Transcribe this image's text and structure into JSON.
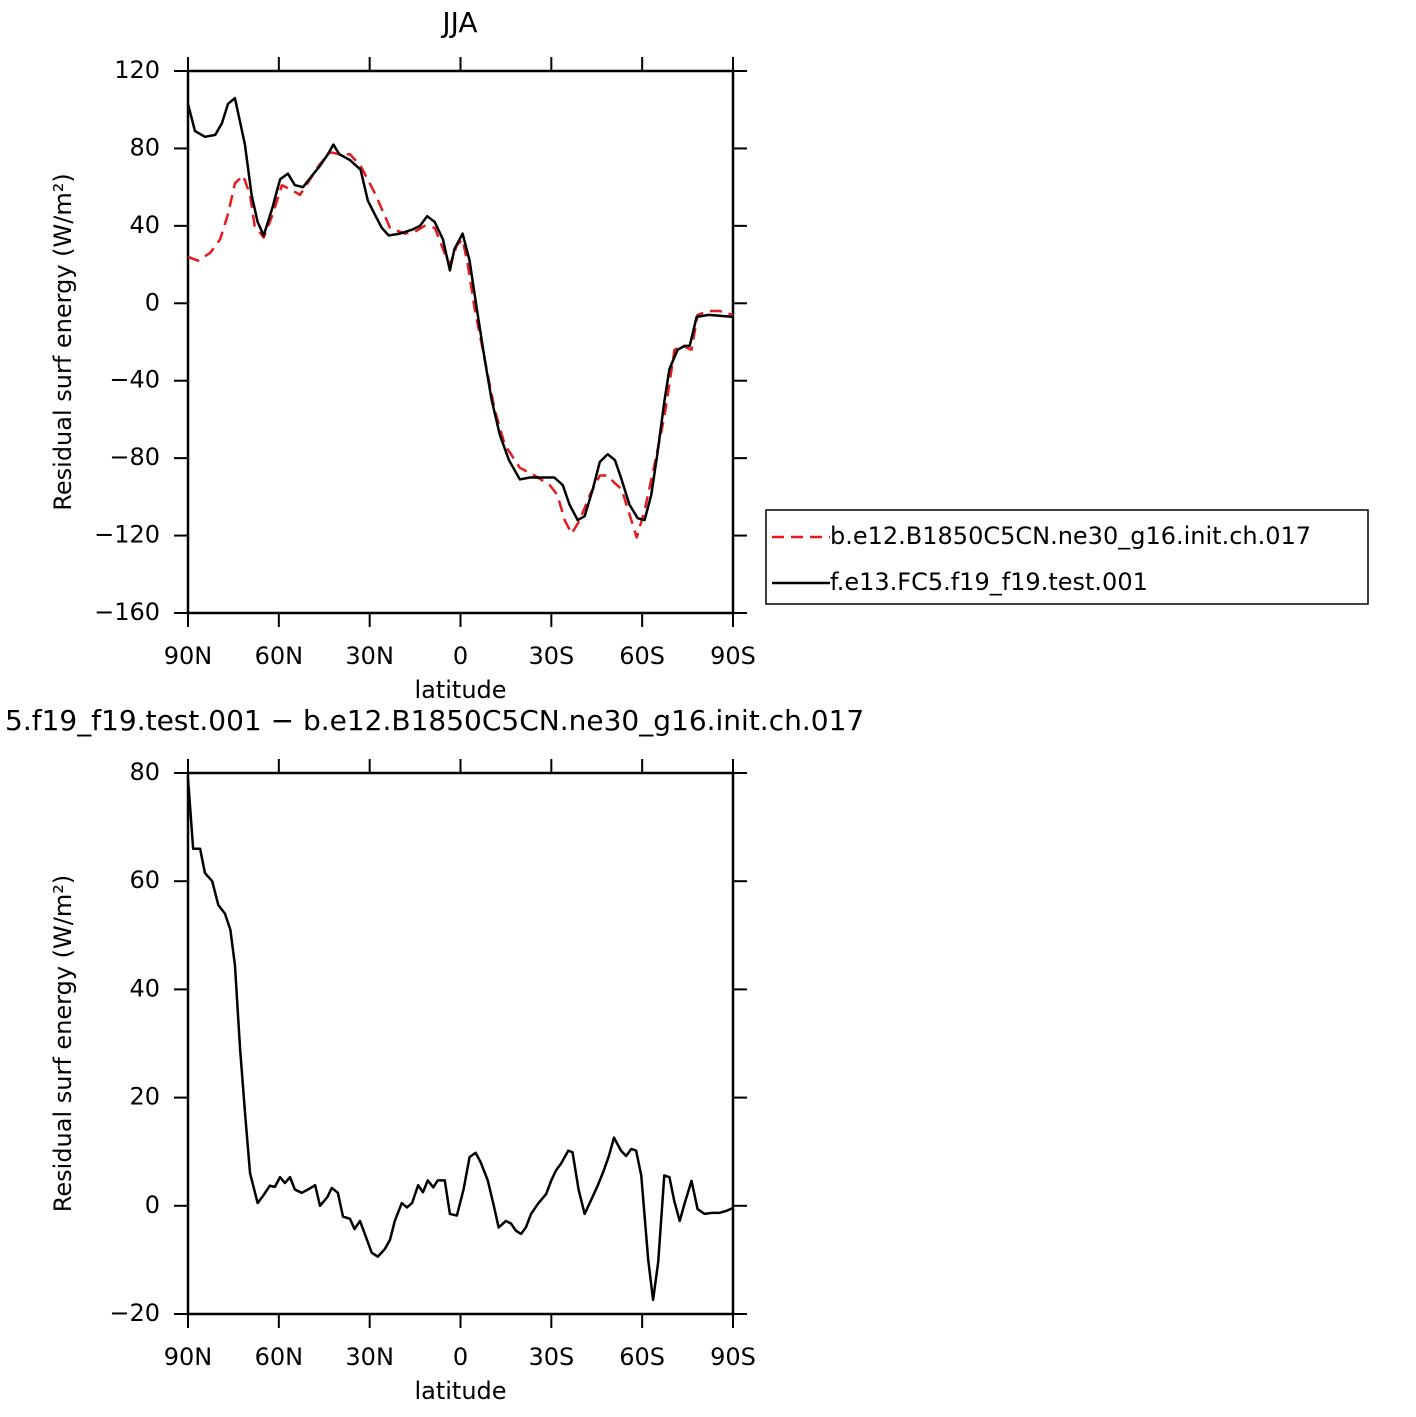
{
  "chart_data": [
    {
      "type": "line",
      "title": "JJA",
      "xlabel": "latitude",
      "ylabel": "Residual surf energy (W/m²)",
      "xlim": [
        90,
        -90
      ],
      "xticks": [
        {
          "value": 90,
          "label": "90N"
        },
        {
          "value": 60,
          "label": "60N"
        },
        {
          "value": 30,
          "label": "30N"
        },
        0,
        {
          "value": -30,
          "label": "30S"
        },
        {
          "value": -60,
          "label": "60S"
        },
        {
          "value": -90,
          "label": "90S"
        }
      ],
      "ylim": [
        -160,
        120
      ],
      "yticks": [
        -160,
        -120,
        -80,
        -40,
        0,
        40,
        80,
        120
      ],
      "legend": "right",
      "series": [
        {
          "name": "b.e12.B1850C5CN.ne30_g16.init.ch.017",
          "color": "#e41a1c",
          "dash": true,
          "x": [
            90,
            86.7,
            82.7,
            79.4,
            76.8,
            74.5,
            71.8,
            69.5,
            68,
            65,
            62,
            59,
            56.3,
            53,
            49.7,
            46.4,
            43,
            40,
            36.5,
            33,
            28,
            23.3,
            18.4,
            15,
            11.8,
            8.5,
            5,
            3.5,
            1.2,
            -0.7,
            -2.4,
            -4.7,
            -8,
            -11.3,
            -14.6,
            -19.6,
            -24.5,
            -29.5,
            -32,
            -34.4,
            -36.7,
            -39.4,
            -42.7,
            -46,
            -48.6,
            -51,
            -53.2,
            -55.8,
            -58.2,
            -60.8,
            -64,
            -67.4,
            -70.7,
            -73.4,
            -76.3,
            -78.3,
            -82,
            -85.6,
            -90
          ],
          "values": [
            24,
            22,
            26,
            33,
            46,
            62,
            66,
            56,
            40,
            34,
            46,
            61,
            59,
            56,
            64,
            72,
            78,
            77,
            77,
            71,
            56,
            39,
            36,
            37,
            40,
            39,
            25,
            20,
            30,
            33,
            20,
            -3,
            -29,
            -55,
            -73,
            -85,
            -89,
            -94,
            -99,
            -112,
            -119,
            -112,
            -99,
            -89,
            -89,
            -93,
            -96,
            -109,
            -121,
            -107,
            -84,
            -58,
            -24,
            -22,
            -24,
            -6,
            -4,
            -4,
            -6
          ]
        },
        {
          "name": "f.e13.FC5.f19_f19.test.001",
          "color": "#000000",
          "dash": false,
          "x": [
            90,
            87.7,
            84.4,
            81,
            78.8,
            76.8,
            74.5,
            71.2,
            69,
            67,
            65,
            62,
            59.6,
            57,
            54.7,
            52,
            49,
            46.4,
            43.8,
            42,
            40,
            36.5,
            33,
            30.6,
            28,
            26,
            23.7,
            20,
            16,
            13.4,
            11,
            8.5,
            5.8,
            3.5,
            2,
            -0.7,
            -3,
            -5.4,
            -8,
            -10.3,
            -13,
            -16,
            -19.6,
            -22.9,
            -27.8,
            -31,
            -33.8,
            -36,
            -38.7,
            -41,
            -43.7,
            -46,
            -48.6,
            -51,
            -53.2,
            -55.8,
            -58.5,
            -60.8,
            -63,
            -65,
            -67.4,
            -69,
            -71.7,
            -74,
            -75.7,
            -78,
            -82,
            -90
          ],
          "values": [
            103,
            89,
            86,
            87,
            93,
            103,
            106,
            82,
            56,
            42,
            35,
            50,
            64,
            67,
            61,
            60,
            66,
            71,
            77,
            82,
            77,
            74,
            69,
            53,
            45,
            39,
            35,
            36,
            38,
            40,
            45,
            42,
            33,
            17,
            28,
            36,
            22,
            -3,
            -29,
            -50,
            -68,
            -81,
            -91,
            -90,
            -90,
            -90,
            -94,
            -104,
            -112,
            -110,
            -96,
            -82,
            -78,
            -81,
            -91,
            -104,
            -111,
            -112,
            -99,
            -78,
            -50,
            -34,
            -24,
            -22,
            -22,
            -7,
            -6,
            -7
          ]
        }
      ]
    },
    {
      "type": "line",
      "title": "5.f19_f19.test.001 − b.e12.B1850C5CN.ne30_g16.init.ch.017",
      "xlabel": "latitude",
      "ylabel": "Residual surf energy (W/m²)",
      "xlim": [
        90,
        -90
      ],
      "xticks": [
        {
          "value": 90,
          "label": "90N"
        },
        {
          "value": 60,
          "label": "60N"
        },
        {
          "value": 30,
          "label": "30N"
        },
        0,
        {
          "value": -30,
          "label": "30S"
        },
        {
          "value": -60,
          "label": "60S"
        },
        {
          "value": -90,
          "label": "90S"
        }
      ],
      "ylim": [
        -20,
        80
      ],
      "yticks": [
        -20,
        0,
        20,
        40,
        60,
        80
      ],
      "series": [
        {
          "color": "#000000",
          "dash": false,
          "x": [
            90,
            88.3,
            86,
            84.4,
            82,
            80,
            77.8,
            76,
            74.5,
            72.8,
            71,
            69.5,
            67,
            65,
            63,
            61.3,
            59.6,
            58,
            56.3,
            54.7,
            52.4,
            50.4,
            48,
            46.4,
            44,
            42.5,
            40.5,
            38.8,
            36.5,
            35,
            33.2,
            31.6,
            29.3,
            27.3,
            25,
            23.3,
            21.7,
            19.4,
            17.7,
            16,
            14,
            12.4,
            10.8,
            9,
            7.5,
            5.2,
            3.5,
            1.2,
            -1,
            -3,
            -5,
            -6.7,
            -9,
            -11,
            -12.6,
            -15,
            -16.7,
            -18.3,
            -20,
            -21.6,
            -23.3,
            -25.6,
            -28.3,
            -30,
            -31.5,
            -33.2,
            -35.6,
            -37,
            -39,
            -41,
            -43,
            -45.3,
            -47.3,
            -49,
            -50.7,
            -53,
            -54.7,
            -56.4,
            -58,
            -59.7,
            -62,
            -63.6,
            -65.3,
            -67.3,
            -69,
            -70.6,
            -72.4,
            -74,
            -76.3,
            -78.3,
            -80.6,
            -83,
            -85.6,
            -88,
            -90
          ],
          "values": [
            79,
            66,
            66,
            61.5,
            60,
            55.6,
            54,
            51,
            44.5,
            29,
            16,
            6,
            0.5,
            2,
            3.7,
            3.5,
            5.3,
            4.2,
            5.3,
            3,
            2.4,
            3,
            3.8,
            0,
            1.6,
            3.3,
            2.4,
            -2,
            -2.4,
            -4.3,
            -2.8,
            -5.2,
            -8.7,
            -9.4,
            -8,
            -6.3,
            -2.8,
            0.5,
            -0.3,
            0.5,
            3.8,
            2.5,
            4.7,
            3.4,
            4.7,
            4.7,
            -1.5,
            -1.8,
            3,
            9,
            9.8,
            8,
            4.7,
            0,
            -4,
            -2.8,
            -3.3,
            -4.6,
            -5.2,
            -4,
            -1.5,
            0.4,
            2.2,
            4.7,
            6.5,
            7.8,
            10.2,
            9.9,
            3,
            -1.5,
            0.9,
            3.7,
            6.5,
            9.2,
            12.6,
            10.2,
            9.2,
            10.5,
            10.2,
            5.6,
            -10,
            -17.4,
            -10.4,
            5.6,
            5.3,
            0.9,
            -2.8,
            0.4,
            4.6,
            -0.6,
            -1.5,
            -1.3,
            -1.3,
            -0.9,
            -0.4
          ]
        }
      ]
    }
  ]
}
